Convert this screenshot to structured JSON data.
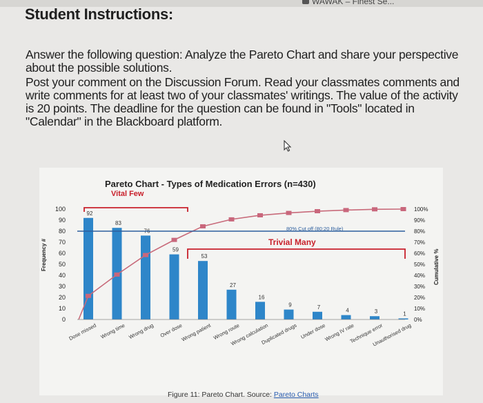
{
  "browser": {
    "tab_text": "WAWAK – Finest Se..."
  },
  "heading": "Student Instructions:",
  "paragraphs": [
    "Answer the following question: Analyze the Pareto Chart and share your perspective about the possible solutions.",
    "Post your comment on the Discussion Forum. Read your classmates comments and write comments for at least two of your classmates' writings. The value of the activity is 20 points. The deadline for the question can be found in \"Tools\" located in \"Calendar\" in the Blackboard platform."
  ],
  "caption": {
    "text": "Figure 11: Pareto Chart. Source: ",
    "link": "Pareto Charts"
  },
  "chart_data": {
    "type": "bar",
    "title": "Pareto Chart - Types of Medication Errors (n=430)",
    "subtitle": "Vital Few",
    "trivial_label": "Trivial Many",
    "cutoff_label": "80% Cut off (80:20 Rule)",
    "ylabel": "Frequency #",
    "y2label": "Cumulative %",
    "ylim": [
      0,
      100
    ],
    "yticks": [
      "100",
      "90",
      "80",
      "70",
      "60",
      "50",
      "40",
      "30",
      "20",
      "10",
      "0"
    ],
    "y2ticks": [
      "100%",
      "90%",
      "80%",
      "70%",
      "60%",
      "50%",
      "40%",
      "30%",
      "20%",
      "10%",
      "0%"
    ],
    "categories": [
      "Dose missed",
      "Wrong time",
      "Wrong drug",
      "Over dose",
      "Wrong patient",
      "Wrong route",
      "Wrong calculation",
      "Duplicated drugs",
      "Under dose",
      "Wrong IV rate",
      "Technique error",
      "Unauthorised drug"
    ],
    "values": [
      92,
      83,
      76,
      59,
      53,
      27,
      16,
      9,
      7,
      4,
      3,
      1
    ],
    "cumulative_pct": [
      21.4,
      40.7,
      58.4,
      72.1,
      84.4,
      90.7,
      94.4,
      96.5,
      98.1,
      99.1,
      99.8,
      100
    ],
    "cutoff_pct": 80,
    "colors": {
      "bar": "#2e86c9",
      "line": "#c86a7a",
      "marker": "#c9677c",
      "cutoff": "#2d5f9e",
      "bracket": "#c8202b",
      "text": "#1f1f1f"
    }
  }
}
